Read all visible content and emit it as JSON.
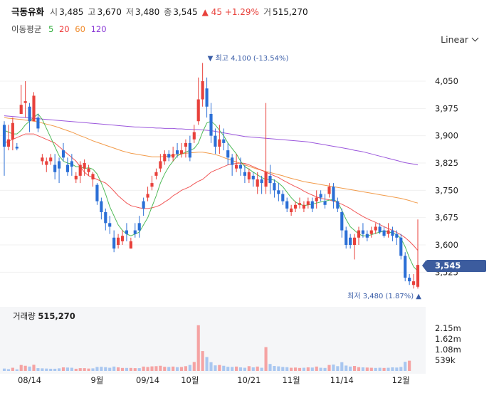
{
  "header": {
    "name": "극동유화",
    "open_label": "시",
    "open": "3,485",
    "high_label": "고",
    "high": "3,670",
    "low_label": "저",
    "low": "3,480",
    "close_label": "종",
    "close": "3,545",
    "change": "▲ 45 +1.29%",
    "volume_label": "거",
    "volume": "515,270"
  },
  "ma_legend": {
    "title": "이동평균",
    "ma5": "5",
    "ma20": "20",
    "ma60": "60",
    "ma120": "120"
  },
  "scale_button": "Linear",
  "price_tag": "3,545",
  "volume_panel": {
    "label": "거래량",
    "value": "515,270"
  },
  "annotations": {
    "high": "▼ 최고  4,100 (-13.54%)",
    "low": "최저  3,480 (1.87%) ▲"
  },
  "colors": {
    "up": "#e8413b",
    "down": "#2b6fd6",
    "ma5": "#2fae3a",
    "ma20": "#ee3a3a",
    "ma60": "#f08a2a",
    "ma120": "#8a3ad6",
    "vol_up": "#f5a3a3",
    "vol_down": "#a9c7f0",
    "price_tag": "#3c5c9e"
  },
  "chart_data": {
    "type": "candlestick",
    "y_ticks": [
      "4,050",
      "3,975",
      "3,900",
      "3,825",
      "3,750",
      "3,675",
      "3,600",
      "3,525"
    ],
    "y_tick_values": [
      4050,
      3975,
      3900,
      3825,
      3750,
      3675,
      3600,
      3525
    ],
    "x_ticks": [
      "08/14",
      "9월",
      "09/14",
      "10월",
      "10/21",
      "11월",
      "11/14",
      "12월"
    ],
    "x_tick_index": [
      6,
      22,
      34,
      44,
      58,
      68,
      80,
      94
    ],
    "volume_ticks": [
      "2.15m",
      "1.62m",
      "1.08m",
      "539k"
    ],
    "volume_tick_values": [
      2150000,
      1620000,
      1080000,
      539000
    ],
    "candles": [
      [
        3930,
        3870,
        3940,
        3790
      ],
      [
        3870,
        3890,
        3930,
        3860
      ],
      [
        3890,
        3935,
        3950,
        3860
      ],
      [
        3870,
        3865,
        3880,
        3860
      ],
      [
        3960,
        3985,
        4040,
        3960
      ],
      [
        3990,
        3995,
        4050,
        3950
      ],
      [
        3980,
        3940,
        3990,
        3910
      ],
      [
        3940,
        4010,
        4020,
        3940
      ],
      [
        3950,
        3920,
        3960,
        3910
      ],
      [
        3830,
        3840,
        3850,
        3820
      ],
      [
        3820,
        3830,
        3840,
        3800
      ],
      [
        3830,
        3840,
        3850,
        3820
      ],
      [
        3820,
        3800,
        3850,
        3780
      ],
      [
        3830,
        3810,
        3840,
        3770
      ],
      [
        3860,
        3840,
        3880,
        3830
      ],
      [
        3820,
        3800,
        3840,
        3790
      ],
      [
        3830,
        3815,
        3850,
        3790
      ],
      [
        3780,
        3790,
        3800,
        3770
      ],
      [
        3790,
        3820,
        3830,
        3770
      ],
      [
        3810,
        3825,
        3835,
        3790
      ],
      [
        3800,
        3810,
        3820,
        3790
      ],
      [
        3780,
        3795,
        3800,
        3760
      ],
      [
        3765,
        3720,
        3770,
        3710
      ],
      [
        3720,
        3690,
        3730,
        3670
      ],
      [
        3690,
        3660,
        3700,
        3640
      ],
      [
        3660,
        3650,
        3680,
        3630
      ],
      [
        3620,
        3590,
        3640,
        3580
      ],
      [
        3600,
        3620,
        3630,
        3590
      ],
      [
        3610,
        3625,
        3640,
        3600
      ],
      [
        3640,
        3630,
        3660,
        3610
      ],
      [
        3590,
        3610,
        3620,
        3590
      ],
      [
        3640,
        3630,
        3660,
        3620
      ],
      [
        3660,
        3640,
        3680,
        3620
      ],
      [
        3720,
        3700,
        3730,
        3680
      ],
      [
        3730,
        3740,
        3760,
        3720
      ],
      [
        3760,
        3770,
        3790,
        3750
      ],
      [
        3790,
        3800,
        3810,
        3780
      ],
      [
        3810,
        3830,
        3850,
        3800
      ],
      [
        3830,
        3850,
        3860,
        3820
      ],
      [
        3850,
        3840,
        3860,
        3830
      ],
      [
        3840,
        3850,
        3870,
        3830
      ],
      [
        3860,
        3850,
        3880,
        3840
      ],
      [
        3850,
        3860,
        3880,
        3840
      ],
      [
        3870,
        3880,
        3890,
        3840
      ],
      [
        3880,
        3840,
        3900,
        3830
      ],
      [
        3890,
        3910,
        3930,
        3880
      ],
      [
        3940,
        4000,
        4060,
        3930
      ],
      [
        4000,
        4050,
        4100,
        3980
      ],
      [
        4030,
        3980,
        4060,
        3950
      ],
      [
        3960,
        3900,
        3990,
        3880
      ],
      [
        3900,
        3870,
        3920,
        3850
      ],
      [
        3870,
        3890,
        3930,
        3850
      ],
      [
        3890,
        3880,
        3920,
        3860
      ],
      [
        3860,
        3840,
        3880,
        3820
      ],
      [
        3840,
        3820,
        3850,
        3790
      ],
      [
        3810,
        3820,
        3850,
        3800
      ],
      [
        3820,
        3810,
        3840,
        3790
      ],
      [
        3800,
        3790,
        3820,
        3770
      ],
      [
        3780,
        3800,
        3810,
        3770
      ],
      [
        3790,
        3780,
        3800,
        3760
      ],
      [
        3760,
        3780,
        3800,
        3740
      ],
      [
        3780,
        3770,
        3790,
        3740
      ],
      [
        3760,
        3800,
        3990,
        3740
      ],
      [
        3790,
        3770,
        3820,
        3740
      ],
      [
        3770,
        3750,
        3780,
        3730
      ],
      [
        3750,
        3740,
        3770,
        3720
      ],
      [
        3740,
        3720,
        3750,
        3710
      ],
      [
        3720,
        3700,
        3730,
        3690
      ],
      [
        3690,
        3700,
        3710,
        3680
      ],
      [
        3700,
        3710,
        3720,
        3690
      ],
      [
        3710,
        3715,
        3730,
        3700
      ],
      [
        3700,
        3710,
        3720,
        3690
      ],
      [
        3710,
        3720,
        3730,
        3700
      ],
      [
        3720,
        3700,
        3730,
        3690
      ],
      [
        3720,
        3730,
        3750,
        3700
      ],
      [
        3740,
        3730,
        3750,
        3720
      ],
      [
        3720,
        3710,
        3740,
        3700
      ],
      [
        3740,
        3760,
        3770,
        3730
      ],
      [
        3760,
        3720,
        3770,
        3700
      ],
      [
        3720,
        3700,
        3730,
        3690
      ],
      [
        3690,
        3640,
        3700,
        3620
      ],
      [
        3640,
        3600,
        3650,
        3590
      ],
      [
        3620,
        3600,
        3630,
        3590
      ],
      [
        3600,
        3620,
        3630,
        3560
      ],
      [
        3620,
        3640,
        3650,
        3600
      ],
      [
        3640,
        3630,
        3660,
        3620
      ],
      [
        3630,
        3620,
        3640,
        3610
      ],
      [
        3630,
        3640,
        3650,
        3620
      ],
      [
        3640,
        3650,
        3660,
        3630
      ],
      [
        3650,
        3635,
        3660,
        3630
      ],
      [
        3640,
        3625,
        3650,
        3620
      ],
      [
        3630,
        3640,
        3660,
        3620
      ],
      [
        3640,
        3625,
        3650,
        3610
      ],
      [
        3630,
        3620,
        3640,
        3600
      ],
      [
        3620,
        3570,
        3630,
        3560
      ],
      [
        3570,
        3510,
        3580,
        3500
      ],
      [
        3510,
        3500,
        3520,
        3490
      ],
      [
        3490,
        3500,
        3520,
        3480
      ],
      [
        3485,
        3545,
        3670,
        3480
      ]
    ],
    "volume": [
      [
        120000,
        0
      ],
      [
        90000,
        0
      ],
      [
        160000,
        1
      ],
      [
        80000,
        0
      ],
      [
        300000,
        1
      ],
      [
        260000,
        1
      ],
      [
        220000,
        0
      ],
      [
        310000,
        1
      ],
      [
        140000,
        0
      ],
      [
        130000,
        0
      ],
      [
        120000,
        0
      ],
      [
        110000,
        0
      ],
      [
        110000,
        0
      ],
      [
        130000,
        0
      ],
      [
        180000,
        1
      ],
      [
        170000,
        0
      ],
      [
        160000,
        0
      ],
      [
        110000,
        1
      ],
      [
        140000,
        1
      ],
      [
        140000,
        1
      ],
      [
        120000,
        1
      ],
      [
        130000,
        0
      ],
      [
        200000,
        0
      ],
      [
        210000,
        0
      ],
      [
        190000,
        0
      ],
      [
        160000,
        0
      ],
      [
        220000,
        0
      ],
      [
        180000,
        1
      ],
      [
        150000,
        1
      ],
      [
        150000,
        0
      ],
      [
        150000,
        1
      ],
      [
        140000,
        1
      ],
      [
        140000,
        0
      ],
      [
        220000,
        1
      ],
      [
        200000,
        1
      ],
      [
        230000,
        1
      ],
      [
        240000,
        1
      ],
      [
        260000,
        1
      ],
      [
        210000,
        1
      ],
      [
        200000,
        0
      ],
      [
        220000,
        1
      ],
      [
        190000,
        0
      ],
      [
        200000,
        1
      ],
      [
        240000,
        1
      ],
      [
        300000,
        0
      ],
      [
        450000,
        1
      ],
      [
        2300000,
        1
      ],
      [
        1000000,
        1
      ],
      [
        700000,
        0
      ],
      [
        440000,
        0
      ],
      [
        280000,
        0
      ],
      [
        300000,
        1
      ],
      [
        260000,
        0
      ],
      [
        210000,
        0
      ],
      [
        200000,
        0
      ],
      [
        220000,
        1
      ],
      [
        180000,
        0
      ],
      [
        160000,
        0
      ],
      [
        240000,
        1
      ],
      [
        180000,
        0
      ],
      [
        220000,
        1
      ],
      [
        160000,
        0
      ],
      [
        1200000,
        1
      ],
      [
        350000,
        0
      ],
      [
        250000,
        0
      ],
      [
        230000,
        0
      ],
      [
        200000,
        0
      ],
      [
        190000,
        0
      ],
      [
        160000,
        1
      ],
      [
        170000,
        1
      ],
      [
        150000,
        1
      ],
      [
        160000,
        0
      ],
      [
        180000,
        1
      ],
      [
        170000,
        0
      ],
      [
        220000,
        1
      ],
      [
        160000,
        0
      ],
      [
        150000,
        0
      ],
      [
        300000,
        1
      ],
      [
        320000,
        0
      ],
      [
        240000,
        0
      ],
      [
        440000,
        0
      ],
      [
        270000,
        0
      ],
      [
        220000,
        0
      ],
      [
        250000,
        1
      ],
      [
        190000,
        1
      ],
      [
        180000,
        0
      ],
      [
        170000,
        1
      ],
      [
        160000,
        1
      ],
      [
        150000,
        0
      ],
      [
        160000,
        0
      ],
      [
        150000,
        1
      ],
      [
        160000,
        0
      ],
      [
        180000,
        0
      ],
      [
        170000,
        0
      ],
      [
        200000,
        0
      ],
      [
        460000,
        0
      ],
      [
        515270,
        1
      ]
    ],
    "ma5": [
      3915,
      3910,
      3905,
      3905,
      3915,
      3930,
      3940,
      3950,
      3960,
      3945,
      3920,
      3895,
      3870,
      3845,
      3830,
      3825,
      3822,
      3815,
      3815,
      3810,
      3812,
      3808,
      3795,
      3770,
      3740,
      3705,
      3680,
      3655,
      3640,
      3630,
      3625,
      3630,
      3635,
      3655,
      3675,
      3705,
      3735,
      3770,
      3795,
      3815,
      3830,
      3845,
      3850,
      3855,
      3860,
      3865,
      3880,
      3910,
      3935,
      3940,
      3930,
      3915,
      3900,
      3880,
      3865,
      3850,
      3830,
      3815,
      3808,
      3800,
      3793,
      3785,
      3780,
      3780,
      3778,
      3770,
      3760,
      3745,
      3730,
      3718,
      3712,
      3708,
      3710,
      3712,
      3715,
      3718,
      3720,
      3723,
      3725,
      3718,
      3695,
      3670,
      3650,
      3640,
      3630,
      3625,
      3625,
      3628,
      3632,
      3635,
      3638,
      3636,
      3633,
      3628,
      3618,
      3595,
      3565,
      3540,
      3528
    ],
    "ma20": [
      3880,
      3885,
      3890,
      3895,
      3900,
      3905,
      3905,
      3905,
      3900,
      3895,
      3890,
      3885,
      3880,
      3870,
      3860,
      3850,
      3840,
      3830,
      3815,
      3800,
      3790,
      3785,
      3780,
      3775,
      3770,
      3760,
      3748,
      3735,
      3725,
      3715,
      3708,
      3705,
      3702,
      3700,
      3700,
      3702,
      3705,
      3710,
      3718,
      3725,
      3735,
      3742,
      3750,
      3755,
      3760,
      3768,
      3775,
      3780,
      3790,
      3800,
      3805,
      3810,
      3815,
      3820,
      3822,
      3824,
      3825,
      3824,
      3820,
      3815,
      3810,
      3805,
      3800,
      3795,
      3790,
      3785,
      3778,
      3772,
      3766,
      3760,
      3755,
      3748,
      3742,
      3737,
      3732,
      3728,
      3726,
      3724,
      3720,
      3716,
      3712,
      3706,
      3700,
      3692,
      3685,
      3678,
      3672,
      3667,
      3662,
      3656,
      3650,
      3645,
      3640,
      3634,
      3628,
      3620,
      3610,
      3598,
      3585
    ],
    "ma60": [
      3950,
      3948,
      3947,
      3946,
      3945,
      3943,
      3942,
      3940,
      3938,
      3935,
      3932,
      3929,
      3926,
      3922,
      3918,
      3914,
      3910,
      3905,
      3900,
      3896,
      3891,
      3886,
      3882,
      3878,
      3874,
      3870,
      3866,
      3862,
      3858,
      3855,
      3852,
      3850,
      3848,
      3846,
      3844,
      3842,
      3842,
      3842,
      3843,
      3844,
      3846,
      3848,
      3850,
      3852,
      3853,
      3854,
      3855,
      3855,
      3853,
      3851,
      3848,
      3845,
      3840,
      3836,
      3832,
      3828,
      3824,
      3820,
      3816,
      3812,
      3808,
      3805,
      3802,
      3799,
      3796,
      3793,
      3790,
      3786,
      3783,
      3780,
      3777,
      3774,
      3772,
      3770,
      3768,
      3766,
      3764,
      3762,
      3760,
      3758,
      3756,
      3754,
      3752,
      3750,
      3748,
      3746,
      3744,
      3742,
      3740,
      3738,
      3736,
      3734,
      3732,
      3730,
      3728,
      3725,
      3722,
      3718,
      3715
    ],
    "ma120": [
      3955,
      3954,
      3953,
      3952,
      3951,
      3950,
      3949,
      3948,
      3947,
      3946,
      3945,
      3944,
      3943,
      3942,
      3941,
      3940,
      3939,
      3938,
      3937,
      3936,
      3935,
      3934,
      3933,
      3932,
      3931,
      3930,
      3929,
      3928,
      3927,
      3926,
      3925,
      3924,
      3924,
      3923,
      3922,
      3922,
      3921,
      3921,
      3920,
      3920,
      3920,
      3919,
      3919,
      3918,
      3918,
      3917,
      3917,
      3916,
      3915,
      3914,
      3912,
      3910,
      3908,
      3906,
      3904,
      3902,
      3900,
      3898,
      3897,
      3896,
      3895,
      3894,
      3893,
      3892,
      3891,
      3890,
      3889,
      3888,
      3887,
      3886,
      3885,
      3884,
      3883,
      3881,
      3879,
      3877,
      3875,
      3873,
      3871,
      3869,
      3867,
      3865,
      3863,
      3860,
      3858,
      3856,
      3853,
      3850,
      3847,
      3844,
      3841,
      3838,
      3835,
      3832,
      3829,
      3826,
      3824,
      3822,
      3820
    ]
  }
}
